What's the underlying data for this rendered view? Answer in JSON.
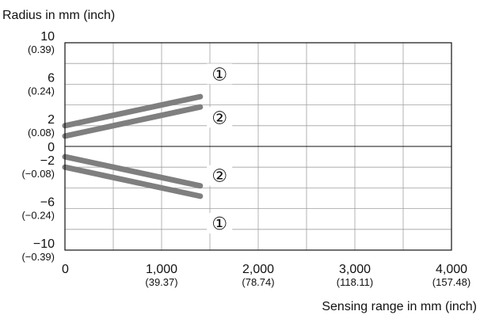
{
  "chart_data": {
    "type": "line",
    "ylabel": "Radius in mm (inch)",
    "xlabel": "Sensing range in mm (inch)",
    "xlim": [
      0,
      4000
    ],
    "ylim": [
      -10,
      10
    ],
    "grid": true,
    "x_ticks": [
      {
        "value": 0,
        "label": "0",
        "sub": ""
      },
      {
        "value": 1000,
        "label": "1,000",
        "sub": "(39.37)"
      },
      {
        "value": 2000,
        "label": "2,000",
        "sub": "(78.74)"
      },
      {
        "value": 3000,
        "label": "3,000",
        "sub": "(118.11)"
      },
      {
        "value": 4000,
        "label": "4,000",
        "sub": "(157.48)"
      }
    ],
    "y_ticks": [
      {
        "value": 10,
        "label": "10",
        "sub": "(0.39)"
      },
      {
        "value": 6,
        "label": "6",
        "sub": "(0.24)"
      },
      {
        "value": 2,
        "label": "2",
        "sub": "(0.08)"
      },
      {
        "value": 0,
        "label": "0",
        "sub": ""
      },
      {
        "value": -2,
        "label": "−2",
        "sub": "(−0.08)"
      },
      {
        "value": -6,
        "label": "−6",
        "sub": "(−0.24)"
      },
      {
        "value": -10,
        "label": "−10",
        "sub": "(−0.39)"
      }
    ],
    "series": [
      {
        "marker": "①",
        "color": "#7f7f7f",
        "x": [
          0,
          1400
        ],
        "y": [
          2.0,
          4.8
        ]
      },
      {
        "marker": "②",
        "color": "#7f7f7f",
        "x": [
          0,
          1400
        ],
        "y": [
          1.0,
          3.8
        ]
      },
      {
        "marker": "②",
        "color": "#7f7f7f",
        "x": [
          0,
          1400
        ],
        "y": [
          -1.0,
          -3.8
        ]
      },
      {
        "marker": "①",
        "color": "#7f7f7f",
        "x": [
          0,
          1400
        ],
        "y": [
          -2.0,
          -4.8
        ]
      }
    ],
    "annotations": [
      {
        "text": "①",
        "x": 1600,
        "y": 7.0
      },
      {
        "text": "②",
        "x": 1600,
        "y": 2.8
      },
      {
        "text": "②",
        "x": 1600,
        "y": -2.8
      },
      {
        "text": "①",
        "x": 1600,
        "y": -7.4
      }
    ]
  }
}
